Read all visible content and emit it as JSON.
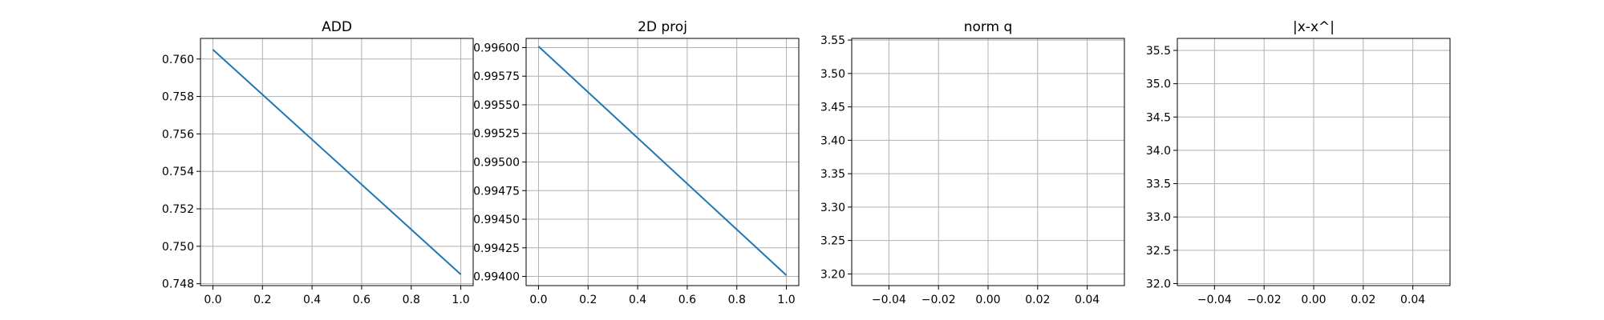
{
  "chart_data": [
    {
      "type": "line",
      "title": "ADD",
      "xlim": [
        -0.05,
        1.05
      ],
      "ylim": [
        0.7479,
        0.7611
      ],
      "xticks": [
        "0.0",
        "0.2",
        "0.4",
        "0.6",
        "0.8",
        "1.0"
      ],
      "yticks": [
        "0.748",
        "0.750",
        "0.752",
        "0.754",
        "0.756",
        "0.758",
        "0.760"
      ],
      "grid": true,
      "color": "#1f77b4",
      "series": [
        {
          "x": [
            0,
            1
          ],
          "y": [
            0.7605,
            0.7485
          ]
        }
      ]
    },
    {
      "type": "line",
      "title": "2D proj",
      "xlim": [
        -0.05,
        1.05
      ],
      "ylim": [
        0.99392,
        0.99608
      ],
      "xticks": [
        "0.0",
        "0.2",
        "0.4",
        "0.6",
        "0.8",
        "1.0"
      ],
      "yticks": [
        "0.99400",
        "0.99425",
        "0.99450",
        "0.99475",
        "0.99500",
        "0.99525",
        "0.99550",
        "0.99575",
        "0.99600"
      ],
      "grid": true,
      "color": "#1f77b4",
      "series": [
        {
          "x": [
            0,
            1
          ],
          "y": [
            0.99601,
            0.99401
          ]
        }
      ]
    },
    {
      "type": "line",
      "title": "norm q",
      "xlim": [
        -0.055,
        0.055
      ],
      "ylim": [
        3.1825,
        3.5525
      ],
      "xticks": [
        "−0.04",
        "−0.02",
        "0.00",
        "0.02",
        "0.04"
      ],
      "yticks": [
        "3.20",
        "3.25",
        "3.30",
        "3.35",
        "3.40",
        "3.45",
        "3.50",
        "3.55"
      ],
      "grid": true,
      "color": "#1f77b4",
      "series": []
    },
    {
      "type": "line",
      "title": "|x-x^|",
      "xlim": [
        -0.055,
        0.055
      ],
      "ylim": [
        31.97,
        35.68
      ],
      "xticks": [
        "−0.04",
        "−0.02",
        "0.00",
        "0.02",
        "0.04"
      ],
      "yticks": [
        "32.0",
        "32.5",
        "33.0",
        "33.5",
        "34.0",
        "34.5",
        "35.0",
        "35.5"
      ],
      "grid": true,
      "color": "#1f77b4",
      "series": []
    }
  ]
}
